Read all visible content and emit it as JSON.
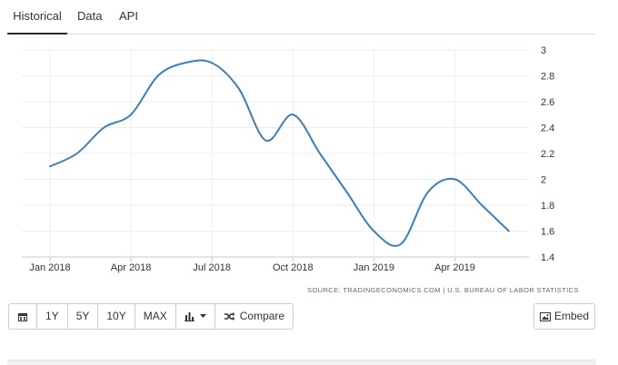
{
  "tabs": [
    {
      "label": "Historical",
      "active": true
    },
    {
      "label": "Data",
      "active": false
    },
    {
      "label": "API",
      "active": false
    }
  ],
  "chart_data": {
    "type": "line",
    "x": [
      "2018-01",
      "2018-02",
      "2018-03",
      "2018-04",
      "2018-05",
      "2018-06",
      "2018-07",
      "2018-08",
      "2018-09",
      "2018-10",
      "2018-11",
      "2018-12",
      "2019-01",
      "2019-02",
      "2019-03",
      "2019-04",
      "2019-05",
      "2019-06"
    ],
    "series": [
      {
        "values": [
          2.1,
          2.2,
          2.4,
          2.5,
          2.8,
          2.9,
          2.9,
          2.7,
          2.3,
          2.5,
          2.2,
          1.9,
          1.6,
          1.5,
          1.9,
          2.0,
          1.8,
          1.6
        ],
        "color": "#3d7fb0"
      }
    ],
    "x_tick_labels": [
      "Jan 2018",
      "Apr 2018",
      "Jul 2018",
      "Oct 2018",
      "Jan 2019",
      "Apr 2019"
    ],
    "y_ticks": [
      "3",
      "2.8",
      "2.6",
      "2.4",
      "2.2",
      "2",
      "1.8",
      "1.6",
      "1.4"
    ],
    "ylim": [
      1.4,
      3
    ],
    "grid": true,
    "y_axis_side": "right",
    "source": "SOURCE: TRADINGECONOMICS.COM  |  U.S. BUREAU OF LABOR STATISTICS"
  },
  "toolbar": {
    "calendar_icon": "calendar-icon",
    "buttons": [
      "1Y",
      "5Y",
      "10Y",
      "MAX"
    ],
    "chart_type_icon": "bar-chart-icon",
    "compare_icon": "shuffle-icon",
    "compare_label": "Compare",
    "embed_icon": "image-icon",
    "embed_label": "Embed"
  }
}
